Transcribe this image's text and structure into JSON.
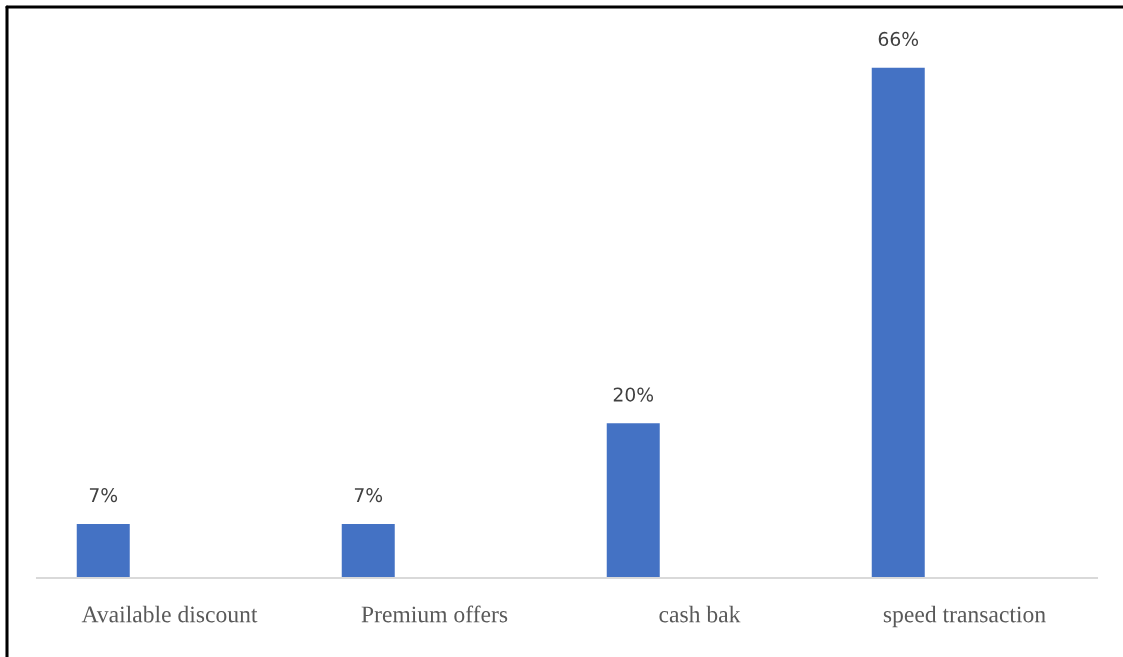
{
  "chart_data": {
    "type": "bar",
    "categories": [
      "Available discount",
      "Premium offers",
      "cash bak",
      "speed transaction"
    ],
    "values": [
      7,
      7,
      20,
      66
    ],
    "value_labels": [
      "7%",
      "7%",
      "20%",
      "66%"
    ],
    "color": "#4472c4",
    "tick_labels": "x"
  }
}
